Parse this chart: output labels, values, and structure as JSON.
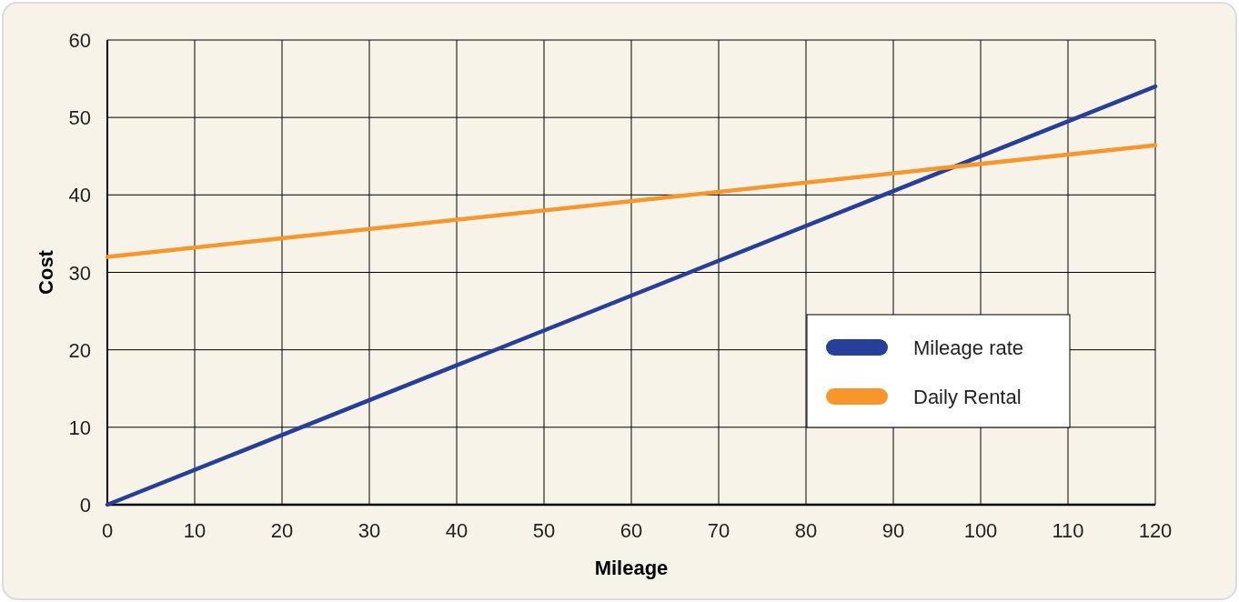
{
  "chart_data": {
    "type": "line",
    "xlabel": "Mileage",
    "ylabel": "Cost",
    "x": [
      0,
      120
    ],
    "series": [
      {
        "name": "Mileage rate",
        "color": "#26409a",
        "values": [
          0,
          54
        ]
      },
      {
        "name": "Daily Rental",
        "color": "#f7962a",
        "values": [
          32,
          46.4
        ]
      }
    ],
    "xlim": [
      0,
      120
    ],
    "xticks": [
      0,
      10,
      20,
      30,
      40,
      50,
      60,
      70,
      80,
      90,
      100,
      110,
      120
    ],
    "ylim": [
      0,
      60
    ],
    "yticks": [
      0,
      10,
      20,
      30,
      40,
      50,
      60
    ],
    "grid": true,
    "legend": "right",
    "marker": "none",
    "line_style": "solid"
  }
}
